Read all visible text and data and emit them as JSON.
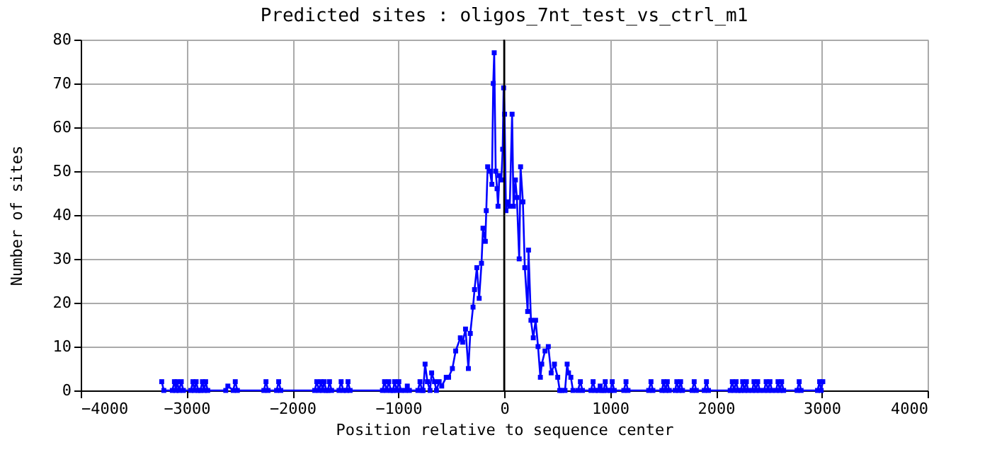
{
  "chart_data": {
    "type": "line",
    "title": "Predicted sites : oligos_7nt_test_vs_ctrl_m1",
    "xlabel": "Position relative to sequence center",
    "ylabel": "Number of sites",
    "x": [
      -3235,
      -3215,
      -3135,
      -3115,
      -3100,
      -3090,
      -3070,
      -3050,
      -3030,
      -2960,
      -2940,
      -2925,
      -2910,
      -2890,
      -2870,
      -2850,
      -2835,
      -2820,
      -2800,
      -2630,
      -2610,
      -2560,
      -2540,
      -2520,
      -2270,
      -2250,
      -2230,
      -2150,
      -2130,
      -2110,
      -1790,
      -1770,
      -1750,
      -1730,
      -1715,
      -1700,
      -1680,
      -1665,
      -1650,
      -1630,
      -1560,
      -1540,
      -1520,
      -1490,
      -1475,
      -1455,
      -1150,
      -1130,
      -1110,
      -1090,
      -1070,
      -1050,
      -1035,
      -1015,
      -995,
      -975,
      -935,
      -915,
      -895,
      -815,
      -795,
      -775,
      -765,
      -747,
      -725,
      -700,
      -685,
      -658,
      -640,
      -614,
      -590,
      -547,
      -525,
      -489,
      -458,
      -414,
      -392,
      -365,
      -338,
      -320,
      -294,
      -280,
      -258,
      -236,
      -214,
      -200,
      -178,
      -169,
      -156,
      -134,
      -116,
      -103,
      -94,
      -80,
      -67,
      -58,
      -45,
      -27,
      -14,
      -5,
      4,
      17,
      31,
      53,
      75,
      88,
      106,
      120,
      142,
      155,
      177,
      195,
      222,
      230,
      253,
      275,
      297,
      320,
      342,
      355,
      386,
      417,
      444,
      475,
      506,
      525,
      542,
      575,
      595,
      608,
      630,
      650,
      697,
      720,
      740,
      820,
      840,
      860,
      890,
      907,
      925,
      940,
      955,
      975,
      1005,
      1021,
      1040,
      1130,
      1151,
      1170,
      1365,
      1387,
      1405,
      1490,
      1507,
      1525,
      1541,
      1560,
      1615,
      1631,
      1650,
      1667,
      1685,
      1775,
      1795,
      1815,
      1890,
      1911,
      1930,
      2135,
      2155,
      2173,
      2191,
      2210,
      2235,
      2253,
      2270,
      2288,
      2305,
      2343,
      2360,
      2378,
      2395,
      2415,
      2455,
      2475,
      2493,
      2511,
      2530,
      2568,
      2587,
      2605,
      2621,
      2640,
      2767,
      2787,
      2805,
      2960,
      2980,
      2995,
      3010
    ],
    "series": [
      {
        "color": "#0000ff",
        "values": [
          2,
          0,
          0,
          2,
          0,
          2,
          0,
          2,
          0,
          0,
          2,
          0,
          2,
          0,
          0,
          2,
          0,
          2,
          0,
          0,
          1,
          0,
          2,
          0,
          0,
          2,
          0,
          0,
          2,
          0,
          0,
          2,
          0,
          2,
          0,
          2,
          0,
          0,
          2,
          0,
          0,
          2,
          0,
          0,
          2,
          0,
          0,
          2,
          0,
          2,
          0,
          0,
          2,
          0,
          2,
          0,
          0,
          1,
          0,
          0,
          2,
          0,
          0,
          6,
          2,
          0,
          4,
          2,
          0,
          2,
          1,
          3,
          3,
          5,
          9,
          12,
          11,
          14,
          5,
          13,
          19,
          23,
          28,
          21,
          29,
          37,
          34,
          41,
          51,
          50,
          47,
          70,
          77,
          50,
          46,
          42,
          49,
          48,
          55,
          69,
          63,
          41,
          43,
          42,
          63,
          42,
          48,
          44,
          30,
          51,
          43,
          28,
          18,
          32,
          16,
          12,
          16,
          10,
          3,
          6,
          9,
          10,
          4,
          6,
          3,
          0,
          0,
          0,
          6,
          4,
          3,
          0,
          0,
          2,
          0,
          0,
          2,
          0,
          0,
          1,
          0,
          0,
          2,
          0,
          0,
          2,
          0,
          0,
          2,
          0,
          0,
          2,
          0,
          0,
          2,
          0,
          2,
          0,
          0,
          2,
          0,
          2,
          0,
          0,
          2,
          0,
          0,
          2,
          0,
          0,
          2,
          0,
          2,
          0,
          0,
          2,
          0,
          2,
          0,
          0,
          2,
          0,
          2,
          0,
          0,
          2,
          0,
          2,
          0,
          0,
          2,
          0,
          2,
          0,
          0,
          2,
          0,
          0,
          2,
          0,
          2
        ]
      }
    ],
    "xlim": [
      -4000,
      4000
    ],
    "xticks": [
      -4000,
      -3000,
      -2000,
      -1000,
      0,
      1000,
      2000,
      3000,
      4000
    ],
    "ylim": [
      0,
      80
    ],
    "yticks": [
      0,
      10,
      20,
      30,
      40,
      50,
      60,
      70,
      80
    ],
    "grid": true,
    "marker": "square",
    "line_style": "solid",
    "ref_lines": [
      {
        "axis": "x",
        "value": 0,
        "color": "#000000"
      }
    ]
  }
}
